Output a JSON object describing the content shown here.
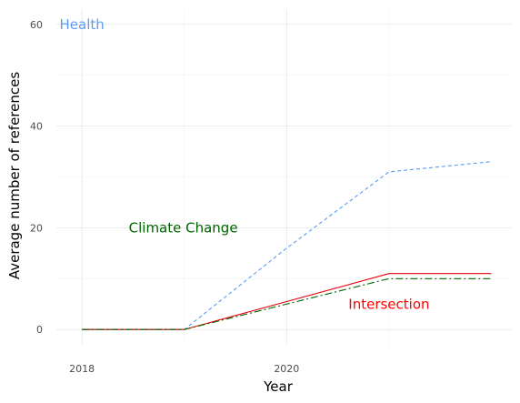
{
  "chart_data": {
    "type": "line",
    "xlabel": "Year",
    "ylabel": "Average number of references",
    "xlim": [
      2017.75,
      2022.2
    ],
    "ylim": [
      -3.0,
      63.0
    ],
    "x_ticks": [
      2018,
      2020
    ],
    "y_ticks": [
      0,
      20,
      40,
      60
    ],
    "grid": true,
    "x": [
      2018,
      2019,
      2020,
      2021,
      2022
    ],
    "series": [
      {
        "name": "Health",
        "color": "#5b9cf4",
        "dash": "4,3",
        "values": [
          0,
          0,
          16,
          31,
          33
        ]
      },
      {
        "name": "Intersection",
        "color": "#e8000b",
        "dash": "",
        "values": [
          0,
          0,
          5.5,
          11,
          11
        ]
      },
      {
        "name": "Climate Change",
        "color": "#006400",
        "dash": "8,3,2,3",
        "values": [
          0,
          0,
          5,
          10,
          10
        ]
      }
    ],
    "annotations": [
      {
        "text": "Health",
        "color": "#5b9cf4",
        "x": 2018,
        "y": 60,
        "anchor": "middle"
      },
      {
        "text": "Climate Change",
        "color": "#006400",
        "x": 2018.99,
        "y": 20,
        "anchor": "middle"
      },
      {
        "text": "Intersection",
        "color": "#ff0000",
        "x": 2021,
        "y": 5,
        "anchor": "middle"
      }
    ]
  }
}
